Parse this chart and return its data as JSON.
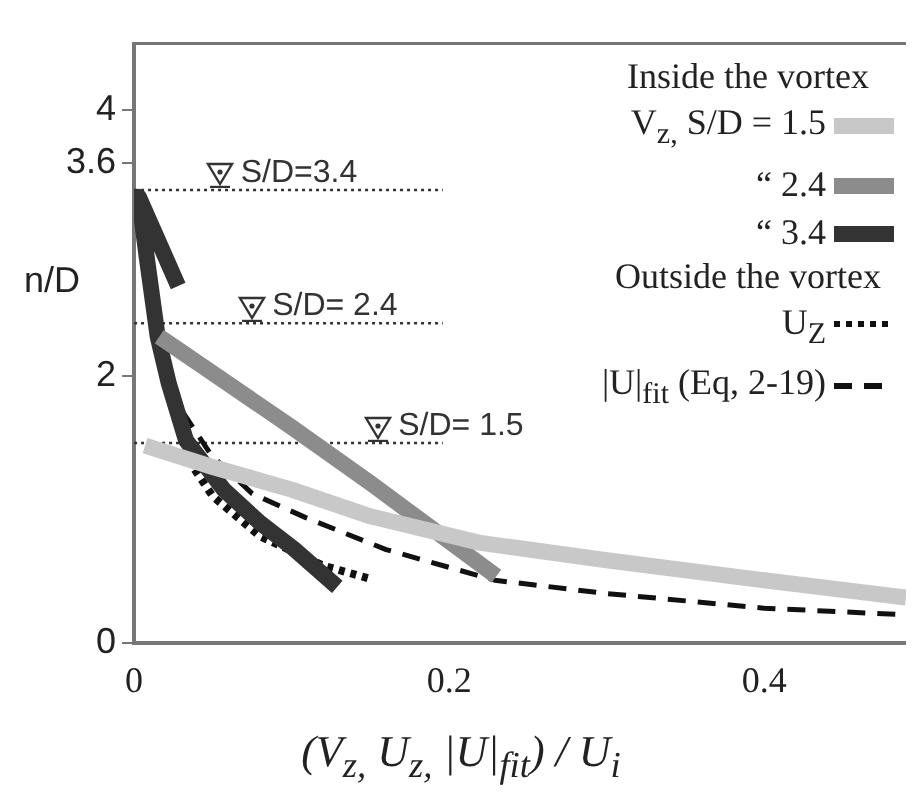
{
  "chart_data": {
    "type": "line",
    "xlabel": "(V$_{z,}$ U$_{z,}$ |U|$_{fit}$) / U$_{i}$",
    "ylabel": "n/D",
    "legend_title": "Inside the vortex",
    "xlim": [
      0,
      0.49
    ],
    "ylim": [
      0,
      4.5
    ],
    "xticks": [
      0,
      0.2,
      0.4
    ],
    "yticks": [
      0,
      2,
      3.6,
      4
    ],
    "grid": false,
    "legend": "top right",
    "marker": "none",
    "series": [
      {
        "name": "V$_{z,}$ S/D = 1.5",
        "color": "#c8c8c8",
        "line_style": "solid",
        "x": [
          0.007,
          0.05,
          0.1,
          0.15,
          0.22,
          0.3,
          0.4,
          0.49
        ],
        "values": [
          1.48,
          1.32,
          1.15,
          0.95,
          0.75,
          0.62,
          0.47,
          0.34
        ]
      },
      {
        "name": "“ 2.4",
        "color": "#8c8c8c",
        "line_style": "solid",
        "x": [
          0.016,
          0.1,
          0.15,
          0.23
        ],
        "values": [
          2.3,
          1.62,
          1.2,
          0.5
        ]
      },
      {
        "name": "“ 3.4",
        "color": "#333333",
        "line_style": "solid",
        "x": [
          0.028,
          0.003,
          0.008,
          0.015,
          0.022,
          0.033,
          0.057,
          0.08,
          0.101,
          0.129
        ],
        "values": [
          2.68,
          3.35,
          2.9,
          2.3,
          1.95,
          1.52,
          1.15,
          0.9,
          0.71,
          0.42
        ]
      },
      {
        "name": "U$_{Z}$",
        "color": "#111111",
        "line_style": "dotted",
        "x": [
          0.03,
          0.05,
          0.08,
          0.12,
          0.15
        ],
        "values": [
          1.45,
          1.1,
          0.8,
          0.58,
          0.48
        ]
      },
      {
        "name": "|U|$_{fit}$ (Eq, 2-19)",
        "color": "#111111",
        "line_style": "dashed",
        "x": [
          0.019,
          0.03,
          0.049,
          0.075,
          0.109,
          0.16,
          0.229,
          0.3,
          0.4,
          0.49
        ],
        "values": [
          2.16,
          1.75,
          1.41,
          1.12,
          0.94,
          0.7,
          0.47,
          0.37,
          0.26,
          0.21
        ]
      }
    ],
    "ref_lines": [
      {
        "axis": "y",
        "value": 3.4,
        "color": "#333333",
        "line_style": "dotted"
      },
      {
        "axis": "y",
        "value": 2.4,
        "color": "#333333",
        "line_style": "dotted"
      },
      {
        "axis": "y",
        "value": 1.5,
        "color": "#333333",
        "line_style": "dotted"
      }
    ],
    "annotations": [
      "Outside the vortex",
      {
        "text": "S/D=3.4",
        "x": 0.055,
        "y": 3.4
      },
      {
        "text": "S/D= 2.4",
        "x": 0.075,
        "y": 2.4
      },
      {
        "text": "S/D= 1.5",
        "x": 0.155,
        "y": 1.5
      }
    ]
  }
}
